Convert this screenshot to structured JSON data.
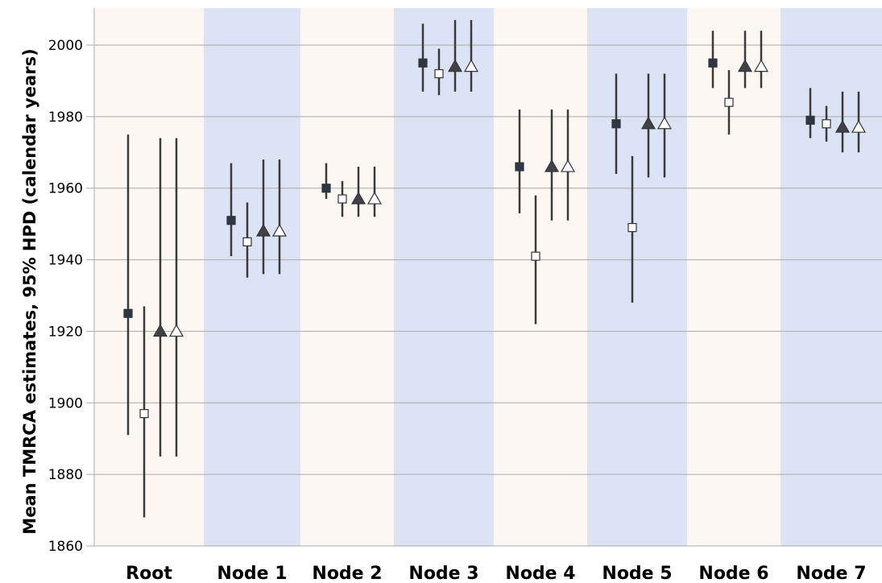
{
  "chart_data": {
    "type": "scatter",
    "title": "",
    "xlabel": "",
    "ylabel": "Mean TMRCA estimates, 95% HPD (calendar years)",
    "ylim": [
      1860,
      2010
    ],
    "yticks": [
      1860,
      1880,
      1900,
      1920,
      1940,
      1960,
      1980,
      2000
    ],
    "grid": true,
    "legend": "none",
    "categories": [
      "Root",
      "Node 1",
      "Node 2",
      "Node 3",
      "Node 4",
      "Node 5",
      "Node 6",
      "Node 7"
    ],
    "band_colors": [
      "#fcf7f2",
      "#dbe3f4"
    ],
    "series": [
      {
        "marker": "filled-square",
        "mean": [
          1925,
          1951,
          1960,
          1995,
          1966,
          1978,
          1995,
          1979
        ],
        "lower": [
          1891,
          1941,
          1957,
          1987,
          1953,
          1964,
          1988,
          1974
        ],
        "upper": [
          1975,
          1967,
          1967,
          2006,
          1982,
          1992,
          2004,
          1988
        ]
      },
      {
        "marker": "open-square",
        "mean": [
          1897,
          1945,
          1957,
          1992,
          1941,
          1949,
          1984,
          1978
        ],
        "lower": [
          1868,
          1935,
          1952,
          1986,
          1922,
          1928,
          1975,
          1973
        ],
        "upper": [
          1927,
          1956,
          1962,
          1999,
          1958,
          1969,
          1993,
          1983
        ]
      },
      {
        "marker": "filled-triangle",
        "mean": [
          1920,
          1948,
          1957,
          1994,
          1966,
          1978,
          1994,
          1977
        ],
        "lower": [
          1885,
          1936,
          1952,
          1987,
          1951,
          1963,
          1988,
          1970
        ],
        "upper": [
          1974,
          1968,
          1966,
          2007,
          1982,
          1992,
          2004,
          1987
        ]
      },
      {
        "marker": "open-triangle",
        "mean": [
          1920,
          1948,
          1957,
          1994,
          1966,
          1978,
          1994,
          1977
        ],
        "lower": [
          1885,
          1936,
          1952,
          1987,
          1951,
          1963,
          1988,
          1970
        ],
        "upper": [
          1974,
          1968,
          1966,
          2007,
          1982,
          1992,
          2004,
          1987
        ]
      }
    ]
  }
}
